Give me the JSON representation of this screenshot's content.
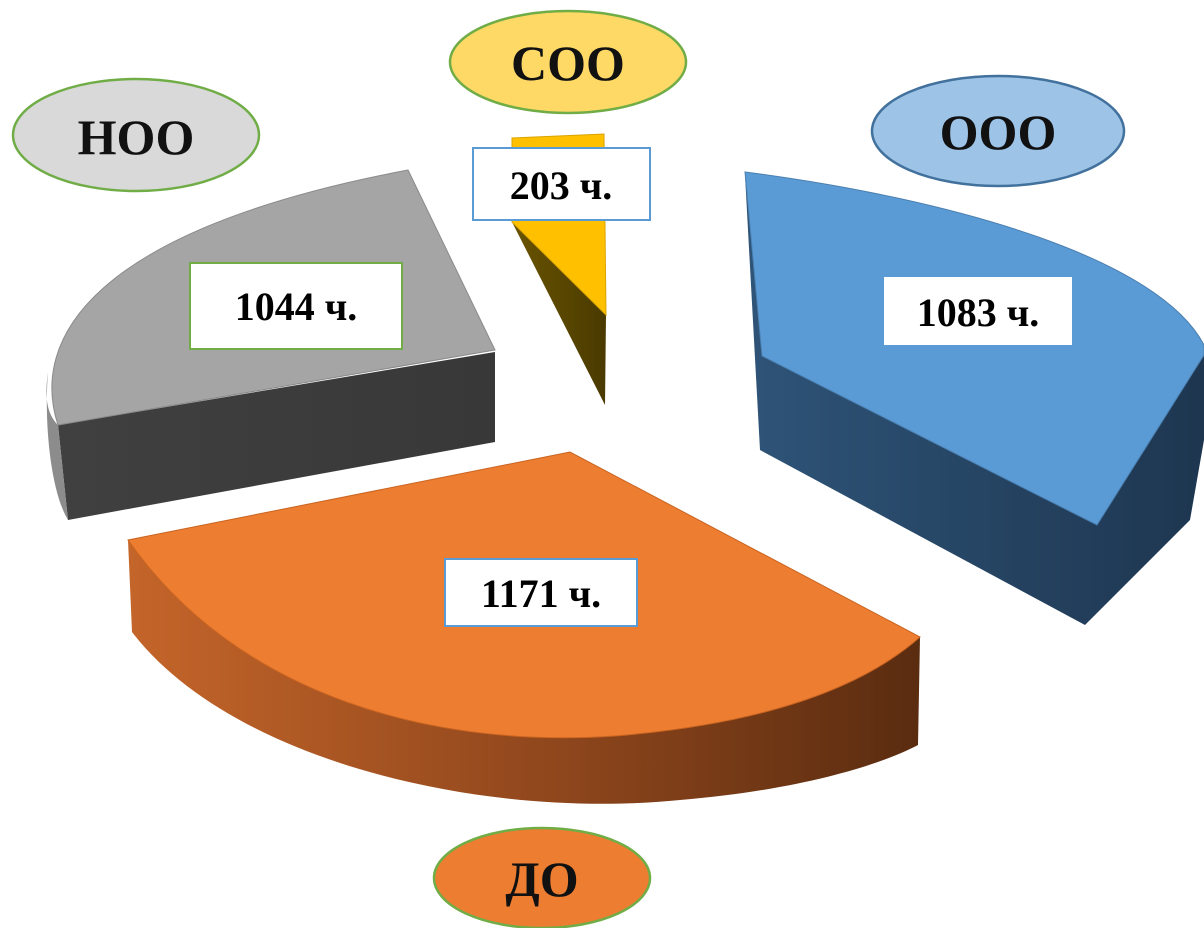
{
  "chart_data": {
    "type": "pie",
    "style": "3d-exploded",
    "slices": [
      {
        "name": "ООО",
        "label": "1083 ч.",
        "value": 1083,
        "color": "#5b9bd5",
        "side_color": "#223f5a",
        "label_bg": "#9dc3e6",
        "label_border": "#41719c"
      },
      {
        "name": "ДО",
        "label": "1171 ч.",
        "value": 1171,
        "color": "#ed7d31",
        "side_color": "#6b3514",
        "label_bg": "#ed7d31",
        "label_border": "#70ad47"
      },
      {
        "name": "НОО",
        "label": "1044 ч.",
        "value": 1044,
        "color": "#a5a5a5",
        "side_color": "#404040",
        "label_bg": "#d9d9d9",
        "label_border": "#70ad47"
      },
      {
        "name": "СОО",
        "label": "203 ч.",
        "value": 203,
        "color": "#ffc000",
        "side_color": "#5e4a00",
        "label_bg": "#ffd966",
        "label_border": "#70ad47"
      }
    ],
    "value_box_borders": [
      "#5b9bd5",
      "#5b9bd5",
      "#70ad47",
      "#5b9bd5"
    ]
  }
}
